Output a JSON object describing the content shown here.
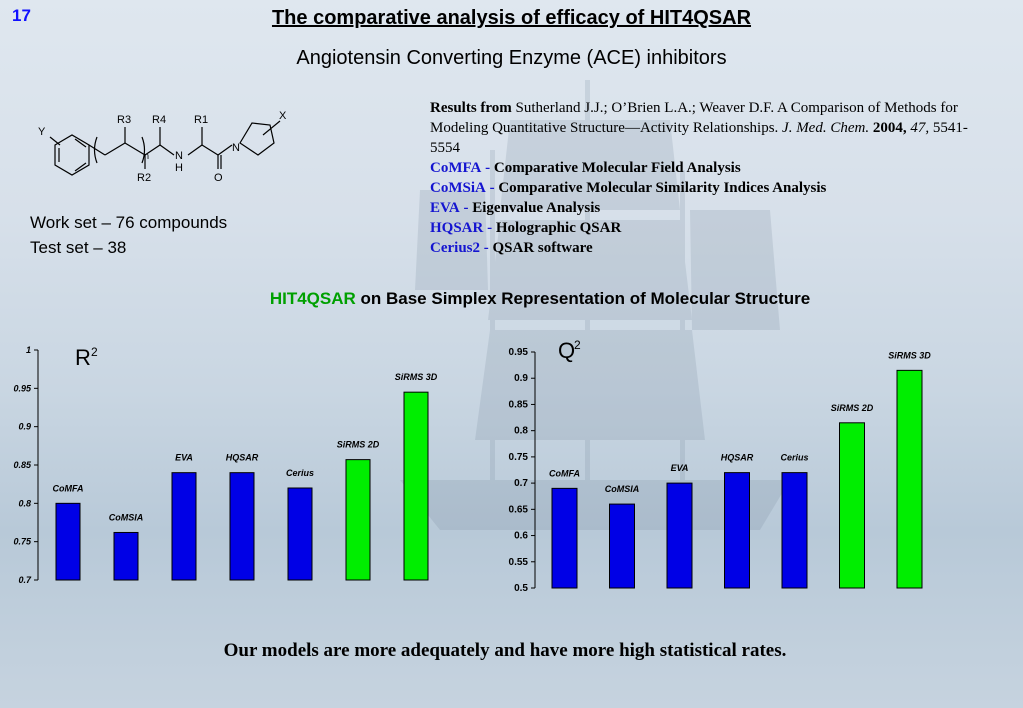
{
  "slide": {
    "number": "17",
    "title": "The comparative analysis of efficacy of HIT4QSAR",
    "subtitle": "Angiotensin Converting Enzyme (ACE) inhibitors"
  },
  "molecule": {
    "labels": [
      "Y",
      "R3",
      "R4",
      "R1",
      "X",
      "n",
      "N",
      "H",
      "R2",
      "O",
      "N"
    ]
  },
  "sets": {
    "work": "Work set – 76 compounds",
    "test": "Test set – 38"
  },
  "references": {
    "results_label": "Results from",
    "citation_text": " Sutherland J.J.; O’Brien L.A.; Weaver D.F. A Comparison of Methods for Modeling Quantitative Structure—Activity Relationships. ",
    "journal": "J. Med. Chem.",
    "year": "2004,",
    "volume": "47,",
    "pages": "5541-5554",
    "methods": [
      {
        "abbr": "CoMFA",
        "sep": "-",
        "desc": "Comparative Molecular Field Analysis"
      },
      {
        "abbr": "CoMSiA",
        "sep": "-",
        "desc": "Comparative Molecular Similarity Indices Analysis"
      },
      {
        "abbr": "EVA",
        "sep": "-",
        "desc": "Eigenvalue Analysis"
      },
      {
        "abbr": "HQSAR",
        "sep": "-",
        "desc": "Holographic QSAR"
      },
      {
        "abbr": "Cerius2",
        "sep": "-",
        "desc": "QSAR software"
      }
    ]
  },
  "method_line": {
    "highlight": "HIT4QSAR",
    "rest": " on Base Simplex Representation of Molecular Structure"
  },
  "colors": {
    "blue_bar": "#0000e6",
    "green_bar": "#00ee00",
    "title_blue": "#1515d0",
    "hit_green": "#00a000"
  },
  "chart_data": [
    {
      "type": "bar",
      "title": "R",
      "title_sup": "2",
      "categories": [
        "CoMFA",
        "CoMSIA",
        "EVA",
        "HQSAR",
        "Cerius",
        "SiRMS 2D",
        "SiRMS 3D"
      ],
      "values": [
        0.8,
        0.762,
        0.84,
        0.84,
        0.82,
        0.857,
        0.945
      ],
      "bar_colors": [
        "blue",
        "blue",
        "blue",
        "blue",
        "blue",
        "green",
        "green"
      ],
      "ylim": [
        0.7,
        1.0
      ],
      "yticks": [
        "0.7",
        "0.75",
        "0.8",
        "0.85",
        "0.9",
        "0.95",
        "1"
      ],
      "ytick_values": [
        0.7,
        0.75,
        0.8,
        0.85,
        0.9,
        0.95,
        1.0
      ],
      "grid": false
    },
    {
      "type": "bar",
      "title": "Q",
      "title_sup": "2",
      "categories": [
        "CoMFA",
        "CoMSIA",
        "EVA",
        "HQSAR",
        "Cerius",
        "SiRMS 2D",
        "SiRMS 3D"
      ],
      "values": [
        0.69,
        0.66,
        0.7,
        0.72,
        0.72,
        0.815,
        0.915
      ],
      "bar_colors": [
        "blue",
        "blue",
        "blue",
        "blue",
        "blue",
        "green",
        "green"
      ],
      "ylim": [
        0.5,
        0.95
      ],
      "yticks": [
        "0.5",
        "0.55",
        "0.6",
        "0.65",
        "0.7",
        "0.75",
        "0.8",
        "0.85",
        "0.9",
        "0.95"
      ],
      "ytick_values": [
        0.5,
        0.55,
        0.6,
        0.65,
        0.7,
        0.75,
        0.8,
        0.85,
        0.9,
        0.95
      ],
      "grid": false
    }
  ],
  "conclusion": "Our models are more adequately and  have more high  statistical rates."
}
